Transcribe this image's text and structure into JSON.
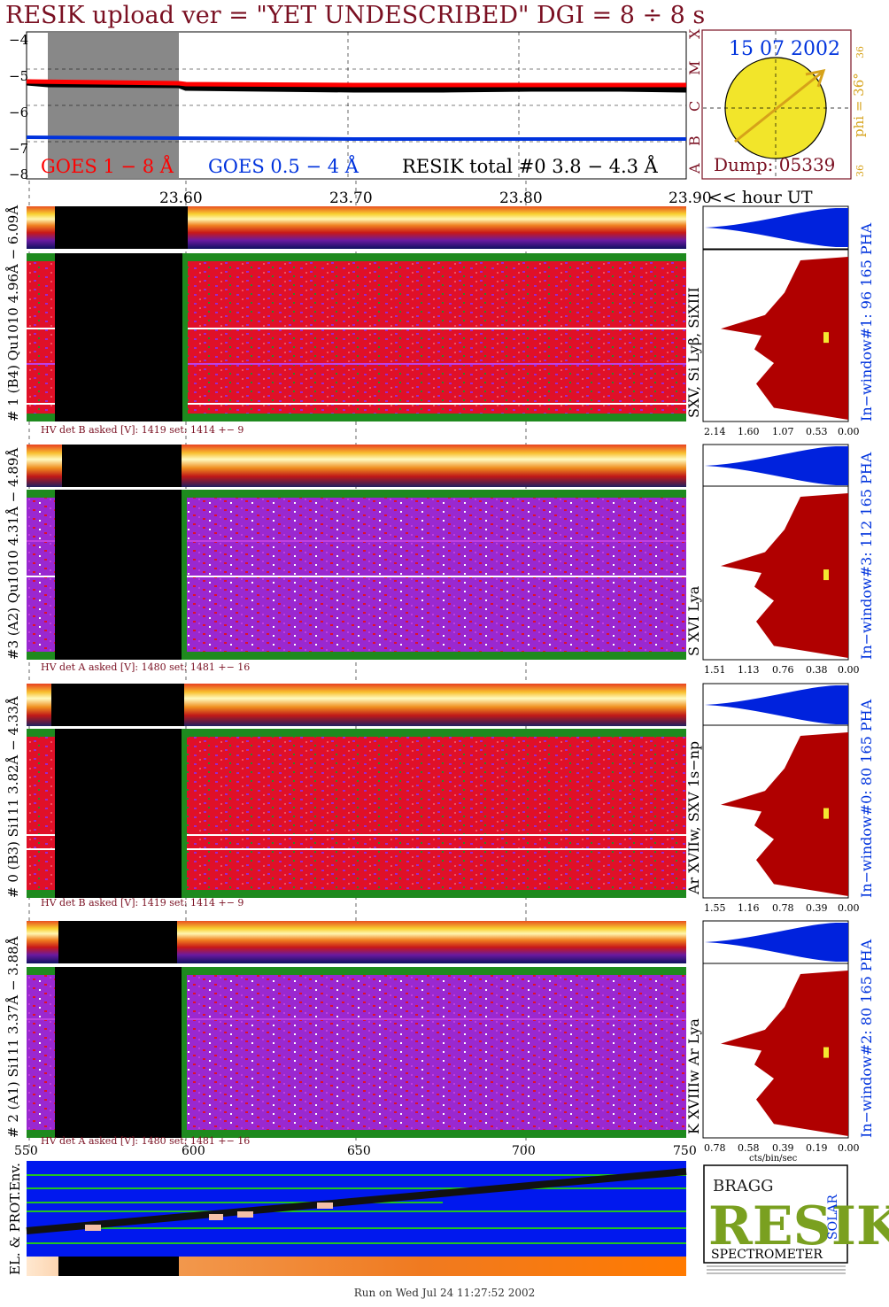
{
  "header": {
    "title": "RESIK upload ver = \"YET UNDESCRIBED\"  DGI =   8 ÷   8 s"
  },
  "goes": {
    "yticks": [
      "−4",
      "−5",
      "−6",
      "−7",
      "−8"
    ],
    "legend_red": "GOES 1 − 8 Å",
    "legend_blue": "GOES 0.5 − 4 Å",
    "legend_black": "RESIK total #0  3.8 − 4.3 Å",
    "class_letters": [
      "A",
      "B",
      "C",
      "M",
      "X"
    ],
    "colors": {
      "red": "#ff0000",
      "blue": "#0033dd",
      "black": "#000000",
      "data_gap": "#888888"
    }
  },
  "sun": {
    "date": "15 07 2002",
    "phi_label": "phi = 36°",
    "side_top": "36",
    "side_bottom": "36",
    "dump": "Dump: 05339",
    "colors": {
      "disc": "#f2e52a",
      "arrow": "#d6a21a",
      "frame": "#7a1022"
    }
  },
  "time_axis": {
    "ticks": [
      "23.60",
      "23.70",
      "23.80",
      "23.90"
    ],
    "unit": "<< hour UT"
  },
  "detectors": [
    {
      "left_label": "# 1 (B4) Qu1010 4.96Å − 6.09Å",
      "right_label": "In−window#1:  96 165 PHA",
      "lines": "SXV, Si Lyβ, SiXIII",
      "hv": "HV det B asked [V]:  1419 set:  1414  +−    9",
      "pha_ticks": [
        "2.14",
        "1.60",
        "1.07",
        "0.53",
        "0.00"
      ]
    },
    {
      "left_label": "#3 (A2) Qu1010  4.31Å − 4.89Å",
      "right_label": "In−window#3:  112 165 PHA",
      "lines": "S XVI Lya",
      "hv": "HV det A asked [V]:  1480 set:  1481  +−    16",
      "pha_ticks": [
        "1.51",
        "1.13",
        "0.76",
        "0.38",
        "0.00"
      ]
    },
    {
      "left_label": "# 0 (B3) Si111  3.82Å − 4.33Å",
      "right_label": "In−window#0:   80 165 PHA",
      "lines": "Ar XVIIw,  SXV 1s−np",
      "hv": "HV det B asked [V]:  1419 set:  1414  +−    9",
      "pha_ticks": [
        "1.55",
        "1.16",
        "0.78",
        "0.39",
        "0.00"
      ]
    },
    {
      "left_label": "# 2 (A1) Si111  3.37Å − 3.88Å",
      "right_label": "In−window#2:   80 165 PHA",
      "lines": "K XVIIIw  Ar Lya",
      "hv": "HV det A asked [V]:  1480 set:  1481  +−    16",
      "pha_ticks": [
        "0.78",
        "0.58",
        "0.39",
        "0.19",
        "0.00"
      ],
      "pha_unit": "cts/bin/sec"
    }
  ],
  "env": {
    "label": "EL. & PROT.Env.",
    "xticks": [
      "550",
      "600",
      "650",
      "700",
      "750"
    ]
  },
  "logo": {
    "letters": "RESIK",
    "bragg": "BRAGG",
    "solar": "SOLAR",
    "spectrometer": "SPECTROMETER"
  },
  "footer": {
    "run": "Run on Wed Jul 24 11:27:52 2002"
  },
  "colors": {
    "spectrogram_red": "#e01028",
    "spectrogram_purple": "#9a28d0",
    "spectrogram_green": "#1e8a1e",
    "histogram": "#b00000",
    "histogram_blue": "#0022dd",
    "env_blue": "#0018ee"
  }
}
